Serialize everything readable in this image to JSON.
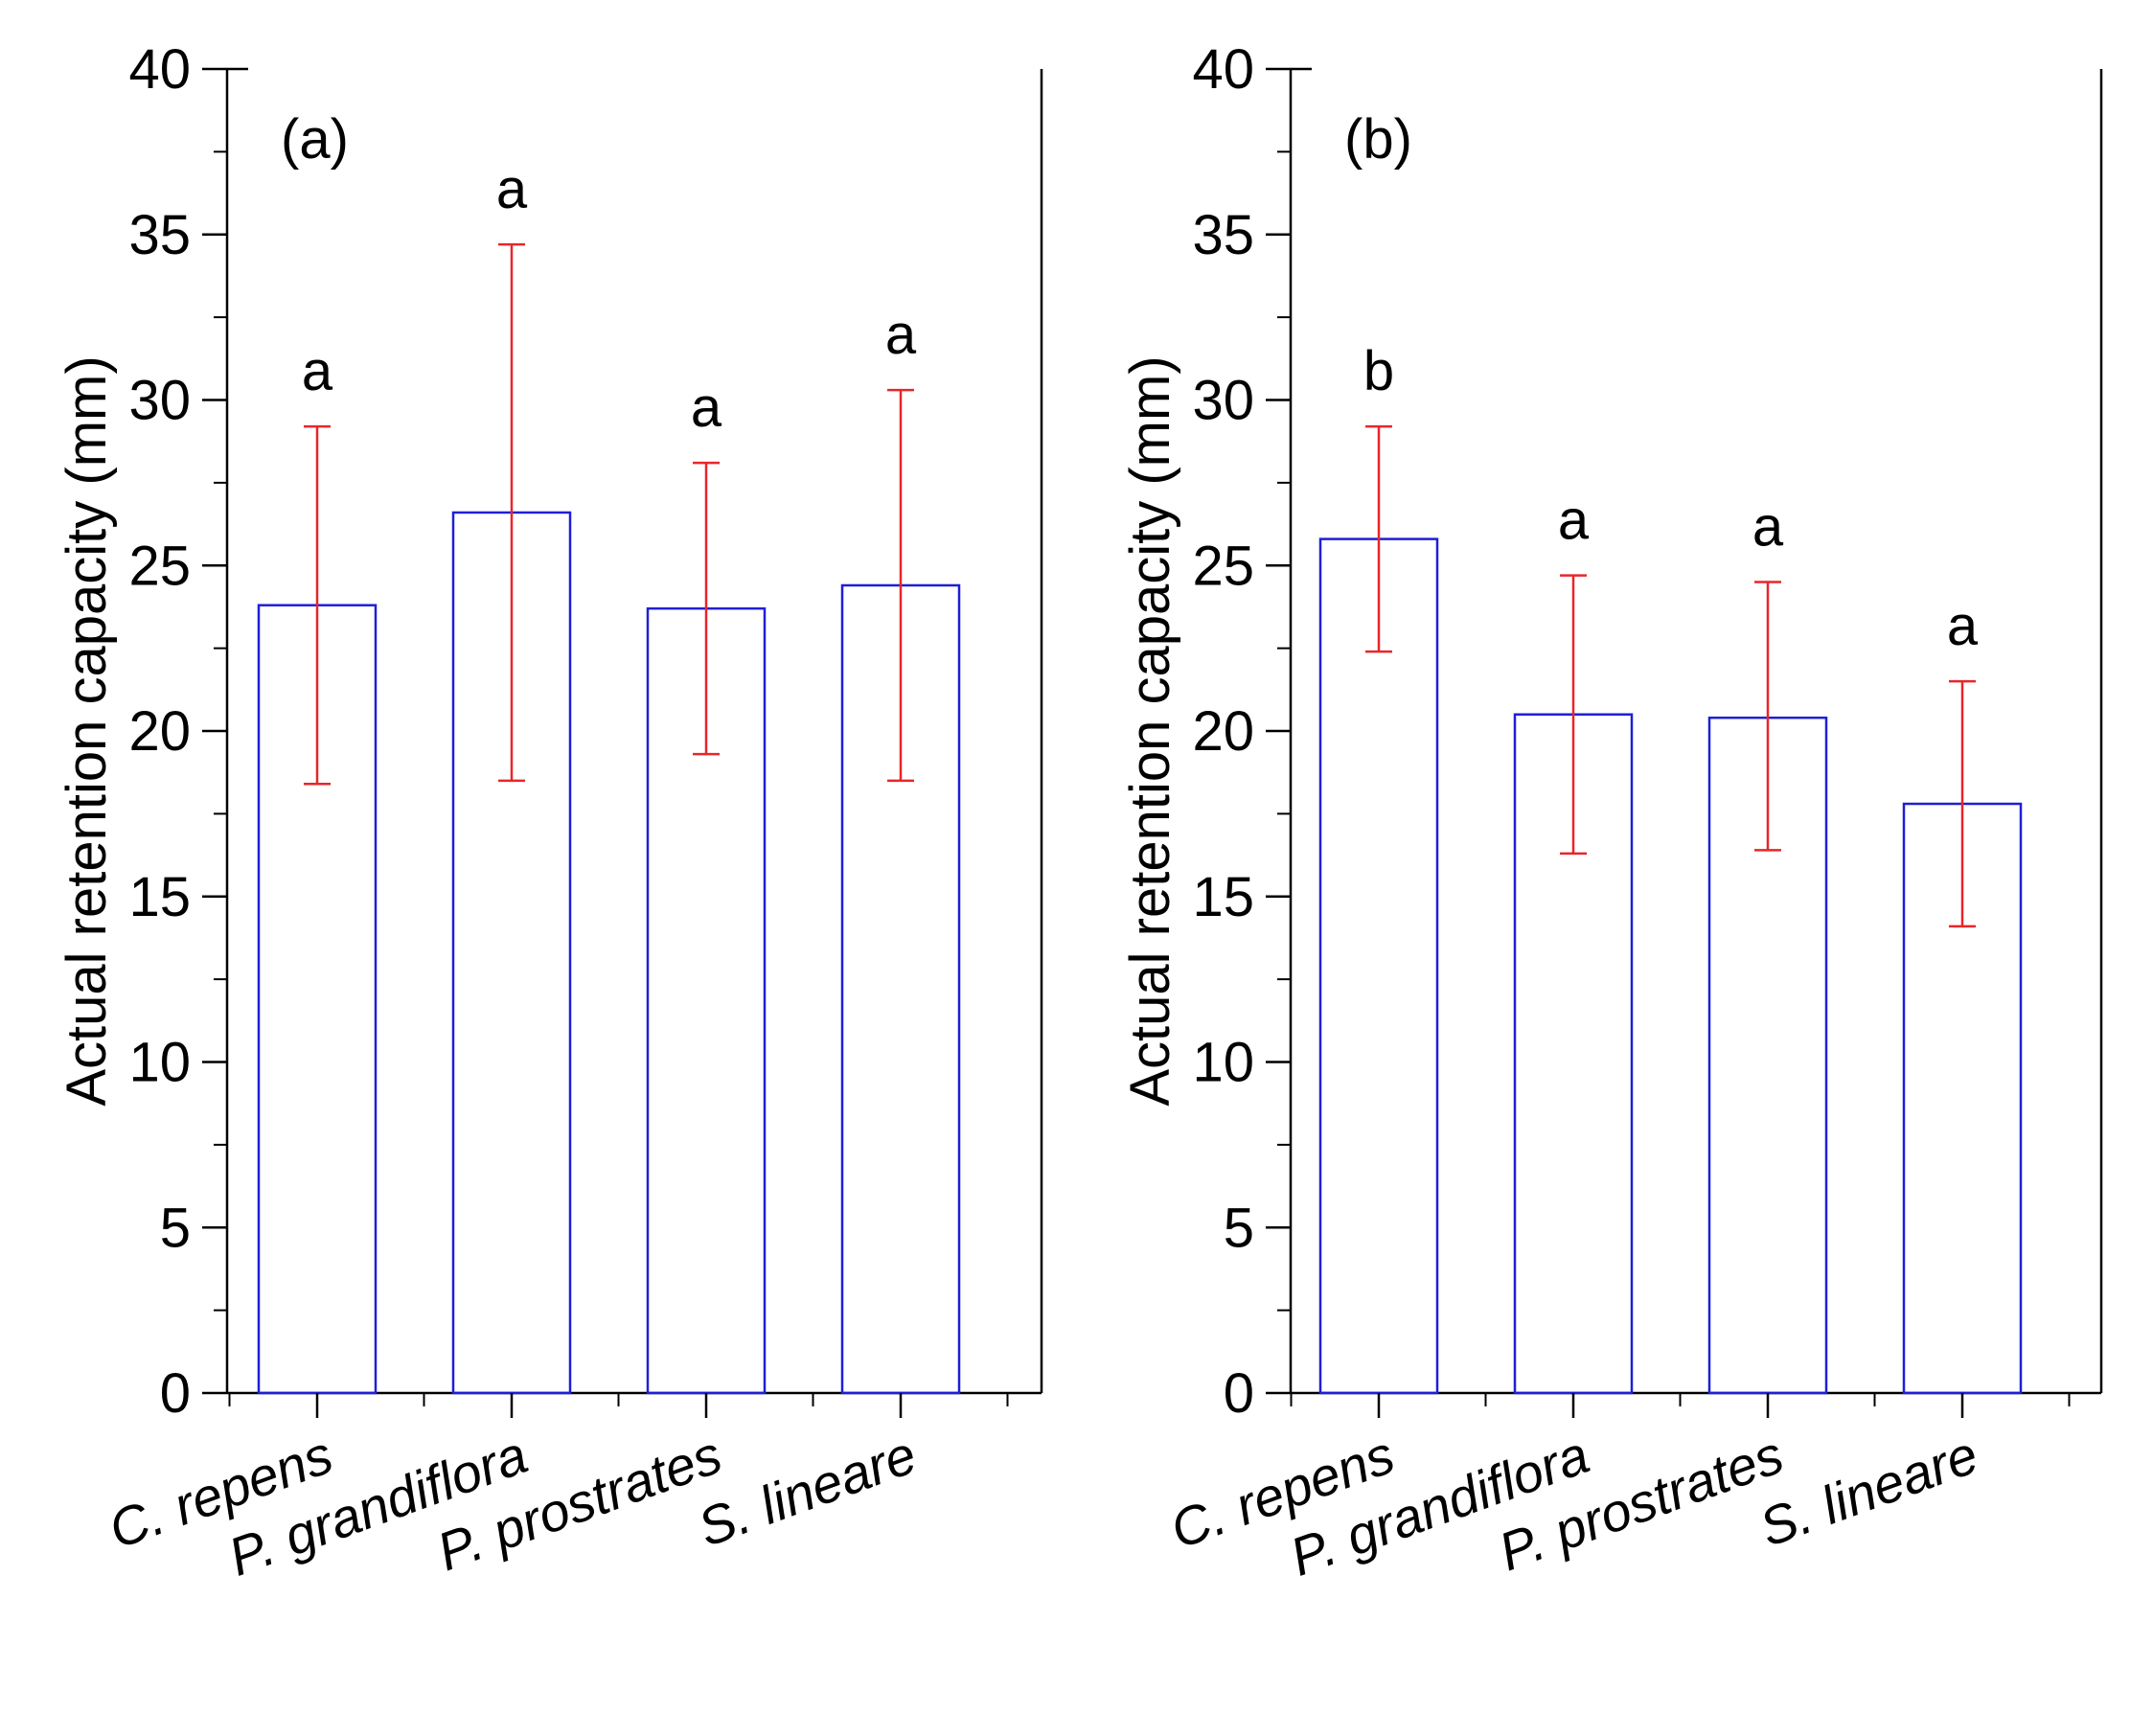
{
  "chart_data": [
    {
      "type": "bar",
      "panel_label": "(a)",
      "categories": [
        "C. repens",
        "P. grandiflora",
        "P. prostrates",
        "S. lineare"
      ],
      "values": [
        23.8,
        26.6,
        23.7,
        24.4
      ],
      "error_low": [
        18.4,
        18.5,
        19.3,
        18.5
      ],
      "error_high": [
        29.2,
        34.7,
        28.1,
        30.3
      ],
      "significance": [
        "a",
        "a",
        "a",
        "a"
      ],
      "ylabel": "Actual retention capacity (mm)",
      "xlabel": "",
      "ylim": [
        0,
        40
      ],
      "yticks": [
        "0",
        "5",
        "10",
        "15",
        "20",
        "25",
        "30",
        "35",
        "40"
      ],
      "ytick_values": [
        0,
        5,
        10,
        15,
        20,
        25,
        30,
        35,
        40
      ],
      "grid": false,
      "bar_color": "#1f1fd6",
      "error_color": "#e8262a"
    },
    {
      "type": "bar",
      "panel_label": "(b)",
      "categories": [
        "C. repens",
        "P. grandiflora",
        "P. prostrates",
        "S. lineare"
      ],
      "values": [
        25.8,
        20.5,
        20.4,
        17.8
      ],
      "error_low": [
        22.4,
        16.3,
        16.4,
        14.1
      ],
      "error_high": [
        29.2,
        24.7,
        24.5,
        21.5
      ],
      "significance": [
        "b",
        "a",
        "a",
        "a"
      ],
      "ylabel": "Actual retention capacity (mm)",
      "xlabel": "",
      "ylim": [
        0,
        40
      ],
      "yticks": [
        "0",
        "5",
        "10",
        "15",
        "20",
        "25",
        "30",
        "35",
        "40"
      ],
      "ytick_values": [
        0,
        5,
        10,
        15,
        20,
        25,
        30,
        35,
        40
      ],
      "grid": false,
      "bar_color": "#1f1fd6",
      "error_color": "#e8262a"
    }
  ]
}
